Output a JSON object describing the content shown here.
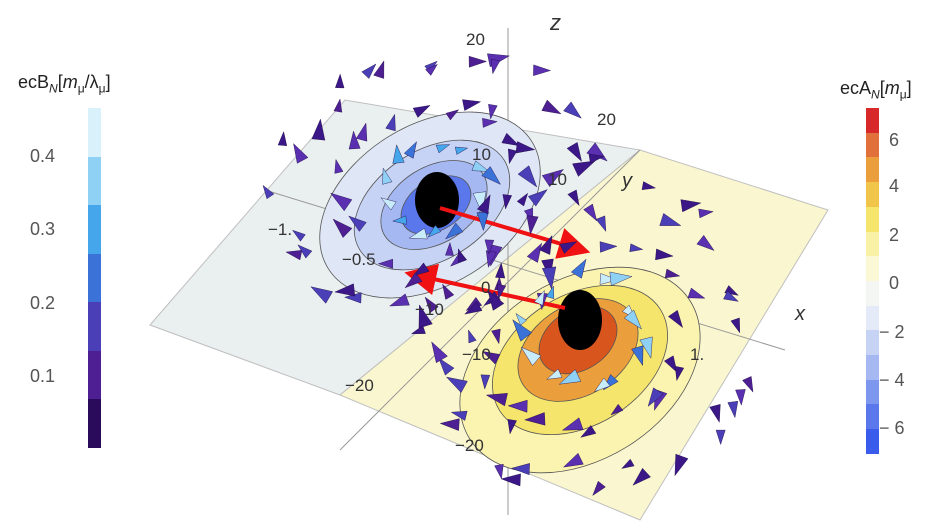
{
  "axes": {
    "x_label": "x",
    "y_label": "y",
    "z_label": "z",
    "z_ticks": [
      "20",
      "10",
      "0",
      "−10",
      "−20"
    ],
    "y_ticks": [
      "20",
      "10",
      "0",
      "−10",
      "−20"
    ],
    "x_ticks": [
      "−1.",
      "−0.5",
      "1."
    ]
  },
  "legend_left": {
    "title_prefix": "ecB",
    "title_sub": "N",
    "title_bracket_open": "[",
    "title_unit_m": "m",
    "title_unit_m_sub": "μ",
    "title_slash": "/",
    "title_unit_l": "λ",
    "title_unit_l_sub": "μ",
    "title_bracket_close": "]",
    "ticks": [
      "0.4",
      "0.3",
      "0.2",
      "0.1"
    ],
    "colors": [
      "#d9f1fb",
      "#8fd0f5",
      "#45a6ec",
      "#3a72d8",
      "#4a3fb6",
      "#4d1f92",
      "#2a0a5a"
    ]
  },
  "legend_right": {
    "title_prefix": "ecA",
    "title_sub": "N",
    "title_bracket_open": "[",
    "title_unit_m": "m",
    "title_unit_m_sub": "μ",
    "title_bracket_close": "]",
    "ticks": [
      "6",
      "4",
      "2",
      "0",
      "− 2",
      "− 4",
      "− 6"
    ],
    "colors": [
      "#d7282a",
      "#e2703a",
      "#eb9f3c",
      "#f1c44a",
      "#f6e56c",
      "#f9f2a6",
      "#fbf8d6",
      "#f3f6f3",
      "#e4eaf7",
      "#c7d3f4",
      "#a5b8f1",
      "#7e97ee",
      "#5a78ec",
      "#3a5ced"
    ]
  },
  "colors": {
    "negative_plane": "#eaeff0",
    "positive_plane": "#faf6cf",
    "arrow_red": "#f01212",
    "core": "#000000"
  }
}
